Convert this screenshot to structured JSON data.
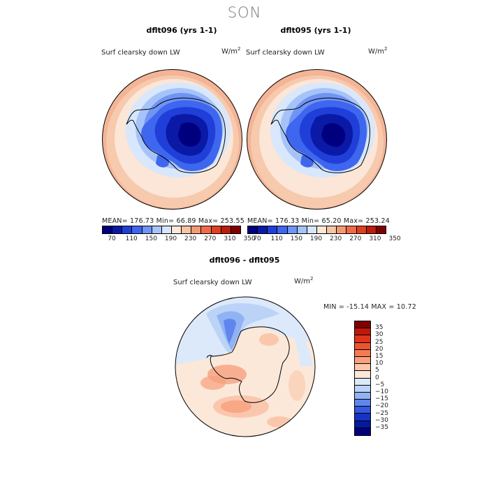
{
  "season": "SON",
  "panels": [
    {
      "title": "dflt096 (yrs 1-1)",
      "variable": "Surf clearsky down LW",
      "units_base": "W/m",
      "units_exp": "2",
      "stats": "MEAN= 176.73  Min=  66.89  Max= 253.55"
    },
    {
      "title": "dflt095 (yrs 1-1)",
      "variable": "Surf clearsky down LW",
      "units_base": "W/m",
      "units_exp": "2",
      "stats": "MEAN= 176.33  Min=  65.20  Max= 253.24"
    }
  ],
  "top_colorbar": {
    "colors": [
      "#00007f",
      "#0a1aa6",
      "#1f3fd8",
      "#3f66ee",
      "#7094f4",
      "#a6c3f9",
      "#d6e6fc",
      "#fbe8d9",
      "#f7c4a6",
      "#f39a74",
      "#ef6b47",
      "#e0401e",
      "#bb1e0a",
      "#800000"
    ],
    "labels": [
      "70",
      "110",
      "150",
      "190",
      "230",
      "270",
      "310",
      "350"
    ]
  },
  "diff": {
    "title": "dflt096 - dflt095",
    "variable": "Surf clearsky down LW",
    "units_base": "W/m",
    "units_exp": "2",
    "minmax": "MIN = -15.14 MAX =  10.72",
    "colorbar_colors": [
      "#800000",
      "#c2170b",
      "#e0351b",
      "#ec5430",
      "#f47a54",
      "#f8a07e",
      "#fbc7ac",
      "#fbe8d9",
      "#dce9fb",
      "#bcd3f8",
      "#91b2f3",
      "#5f86ec",
      "#3459e2",
      "#1633c6",
      "#041a9e",
      "#00007f"
    ],
    "colorbar_labels": [
      "35",
      "30",
      "25",
      "20",
      "15",
      "10",
      "5",
      "0",
      "-5",
      "-10",
      "-15",
      "-20",
      "-25",
      "-30",
      "-35"
    ]
  }
}
